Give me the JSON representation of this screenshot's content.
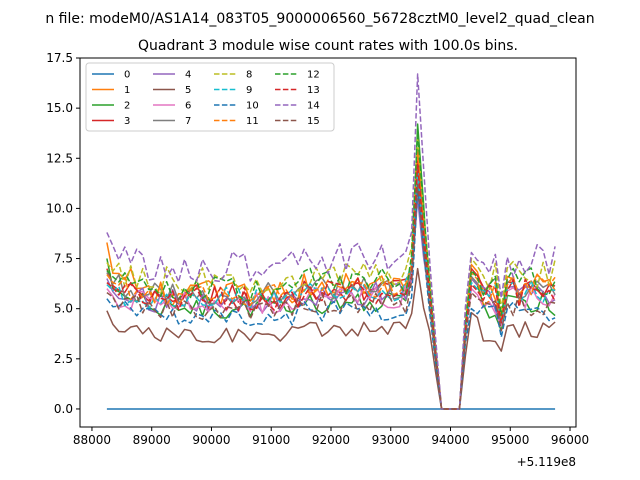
{
  "chart_data": {
    "type": "line",
    "suptitle": "n file: modeM0/AS1A14_083T05_9000006560_56728cztM0_level2_quad_clean",
    "title": "Quadrant 3 module wise count rates with 100.0s bins.",
    "xlabel": "",
    "ylabel": "",
    "x_offset_label": "+5.119e8",
    "x_offset": 511900000,
    "xlim": [
      87800,
      96100
    ],
    "ylim": [
      -0.9,
      17.5
    ],
    "xticks": [
      88000,
      89000,
      90000,
      91000,
      92000,
      93000,
      94000,
      95000,
      96000
    ],
    "xtick_labels": [
      "88000",
      "89000",
      "90000",
      "91000",
      "92000",
      "93000",
      "94000",
      "95000",
      "96000"
    ],
    "yticks": [
      0,
      2.5,
      5,
      7.5,
      10,
      12.5,
      15,
      17.5
    ],
    "ytick_labels": [
      "0.0",
      "2.5",
      "5.0",
      "7.5",
      "10.0",
      "12.5",
      "15.0",
      "17.5"
    ],
    "grid": false,
    "legend_position": "top-left",
    "legend_columns": 4,
    "x_start": 88250,
    "x_step": 100,
    "series": [
      {
        "name": "0",
        "color": "#1f77b4",
        "dash": "solid",
        "points": [
          [
            88250,
            0
          ],
          [
            95750,
            0
          ]
        ]
      },
      {
        "name": "1",
        "color": "#ff7f0e",
        "dash": "solid",
        "base": 5.8,
        "peak": 13.0,
        "start": 8.3,
        "post": 7.2
      },
      {
        "name": "2",
        "color": "#2ca02c",
        "dash": "solid",
        "base": 5.0,
        "peak": 14.2,
        "start": 7.5,
        "post": 6.5
      },
      {
        "name": "3",
        "color": "#d62728",
        "dash": "solid",
        "base": 5.6,
        "peak": 12.5,
        "start": 7.0,
        "post": 7.0
      },
      {
        "name": "4",
        "color": "#9467bd",
        "dash": "solid",
        "base": 5.4,
        "peak": 10.5,
        "start": 6.5,
        "post": 6.5
      },
      {
        "name": "5",
        "color": "#8c564b",
        "dash": "solid",
        "base": 3.7,
        "peak": 7.0,
        "start": 4.9,
        "post": 4.8
      },
      {
        "name": "6",
        "color": "#e377c2",
        "dash": "solid",
        "base": 5.3,
        "peak": 11.5,
        "start": 6.0,
        "post": 6.0
      },
      {
        "name": "7",
        "color": "#7f7f7f",
        "dash": "solid",
        "base": 5.7,
        "peak": 12.0,
        "start": 6.8,
        "post": 6.6
      },
      {
        "name": "8",
        "color": "#bcbd22",
        "dash": "dashed",
        "base": 6.4,
        "peak": 13.5,
        "start": 7.3,
        "post": 7.5
      },
      {
        "name": "9",
        "color": "#17becf",
        "dash": "dashed",
        "base": 5.5,
        "peak": 11.8,
        "start": 6.2,
        "post": 6.3
      },
      {
        "name": "10",
        "color": "#1f77b4",
        "dash": "dashed",
        "base": 4.6,
        "peak": 11.0,
        "start": 5.5,
        "post": 5.0
      },
      {
        "name": "11",
        "color": "#ff7f0e",
        "dash": "dashed",
        "base": 5.7,
        "peak": 12.8,
        "start": 6.7,
        "post": 6.8
      },
      {
        "name": "12",
        "color": "#2ca02c",
        "dash": "dashed",
        "base": 6.0,
        "peak": 13.8,
        "start": 6.9,
        "post": 6.9
      },
      {
        "name": "13",
        "color": "#d62728",
        "dash": "dashed",
        "base": 5.5,
        "peak": 12.2,
        "start": 6.3,
        "post": 6.2
      },
      {
        "name": "14",
        "color": "#9467bd",
        "dash": "dashed",
        "base": 7.1,
        "peak": 16.7,
        "start": 8.8,
        "post": 7.8
      },
      {
        "name": "15",
        "color": "#8c564b",
        "dash": "dashed",
        "base": 5.0,
        "peak": 11.2,
        "start": 5.8,
        "post": 5.8
      }
    ]
  }
}
